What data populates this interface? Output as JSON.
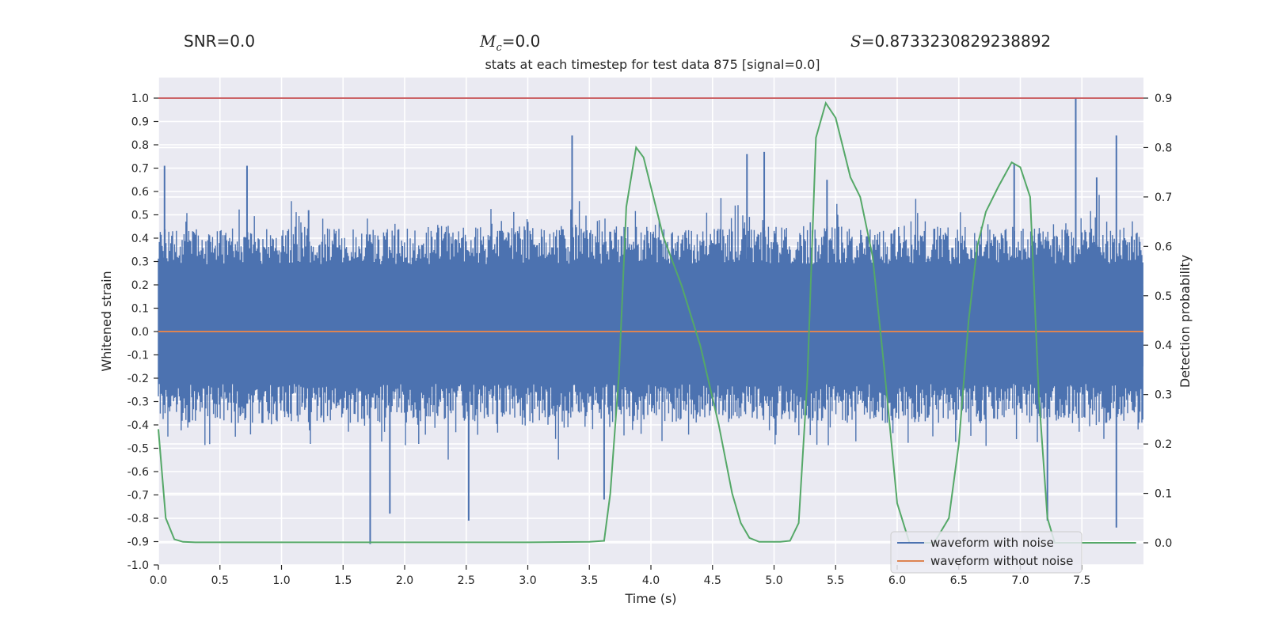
{
  "chart_data": {
    "type": "line",
    "title": "stats at each timestep for test data 875 [signal=0.0]",
    "header_stats": {
      "snr_label": "SNR=0.0",
      "mc_symbol": "M",
      "mc_subscript": "c",
      "mc_value": "=0.0",
      "s_symbol": "S",
      "s_value": "=0.8733230829238892"
    },
    "xlabel": "Time (s)",
    "ylabel_left": "Whitened strain",
    "ylabel_right": "Detection probability",
    "xlim": [
      0.0,
      8.0
    ],
    "ylim_left": [
      -1.0,
      1.1
    ],
    "ylim_right": [
      -0.04,
      0.94
    ],
    "x_ticks": [
      "0.0",
      "0.5",
      "1.0",
      "1.5",
      "2.0",
      "2.5",
      "3.0",
      "3.5",
      "4.0",
      "4.5",
      "5.0",
      "5.5",
      "6.0",
      "6.5",
      "7.0",
      "7.5"
    ],
    "y_left_ticks": [
      "1.0",
      "0.9",
      "0.8",
      "0.7",
      "0.6",
      "0.5",
      "0.4",
      "0.3",
      "0.2",
      "0.1",
      "0.0",
      "-0.1",
      "-0.2",
      "-0.3",
      "-0.4",
      "-0.5",
      "-0.6",
      "-0.7",
      "-0.8",
      "-0.9",
      "-1.0"
    ],
    "y_right_ticks": [
      "0.9",
      "0.8",
      "0.7",
      "0.6",
      "0.5",
      "0.4",
      "0.3",
      "0.2",
      "0.1",
      "0.0"
    ],
    "threshold_line": {
      "y_right": 0.9,
      "color": "#c44e52"
    },
    "series": [
      {
        "name": "waveform with noise",
        "axis": "left",
        "color": "#4c72b0",
        "description_values": {
          "band_low": -0.28,
          "band_high": 0.36,
          "min": -0.91,
          "max": 1.0
        },
        "spikes": [
          {
            "x": 0.05,
            "y": 0.71
          },
          {
            "x": 0.72,
            "y": 0.71
          },
          {
            "x": 1.22,
            "y": 0.52
          },
          {
            "x": 1.72,
            "y": -0.91
          },
          {
            "x": 1.88,
            "y": -0.78
          },
          {
            "x": 2.52,
            "y": -0.81
          },
          {
            "x": 3.36,
            "y": 0.84
          },
          {
            "x": 3.62,
            "y": -0.72
          },
          {
            "x": 4.78,
            "y": 0.76
          },
          {
            "x": 4.92,
            "y": 0.77
          },
          {
            "x": 5.43,
            "y": 0.65
          },
          {
            "x": 6.95,
            "y": 0.72
          },
          {
            "x": 7.22,
            "y": -0.81
          },
          {
            "x": 7.45,
            "y": 1.0
          },
          {
            "x": 7.78,
            "y": 0.84
          },
          {
            "x": 7.78,
            "y": -0.84
          },
          {
            "x": 7.62,
            "y": 0.66
          }
        ]
      },
      {
        "name": "waveform without noise",
        "axis": "left",
        "color": "#dd8452",
        "x": [
          0.0,
          8.0
        ],
        "values": [
          0.0,
          0.0
        ]
      },
      {
        "name": "detection probability",
        "axis": "right",
        "color": "#55a868",
        "x": [
          0.0,
          0.06,
          0.13,
          0.2,
          0.3,
          0.8,
          1.5,
          2.5,
          3.0,
          3.5,
          3.62,
          3.67,
          3.74,
          3.8,
          3.88,
          3.94,
          4.0,
          4.1,
          4.25,
          4.4,
          4.55,
          4.66,
          4.73,
          4.8,
          4.88,
          4.95,
          5.05,
          5.13,
          5.2,
          5.27,
          5.34,
          5.42,
          5.5,
          5.56,
          5.62,
          5.7,
          5.8,
          5.9,
          6.0,
          6.1,
          6.2,
          6.3,
          6.42,
          6.5,
          6.58,
          6.65,
          6.72,
          6.82,
          6.93,
          7.0,
          7.08,
          7.15,
          7.22,
          7.28,
          7.34,
          7.5,
          7.8,
          7.94
        ],
        "values": [
          0.23,
          0.05,
          0.007,
          0.002,
          0.001,
          0.001,
          0.001,
          0.001,
          0.001,
          0.002,
          0.004,
          0.1,
          0.34,
          0.68,
          0.8,
          0.78,
          0.72,
          0.62,
          0.52,
          0.4,
          0.24,
          0.1,
          0.04,
          0.01,
          0.002,
          0.002,
          0.002,
          0.004,
          0.04,
          0.33,
          0.82,
          0.89,
          0.86,
          0.8,
          0.74,
          0.7,
          0.58,
          0.34,
          0.08,
          0.0,
          0.0,
          0.0,
          0.05,
          0.2,
          0.45,
          0.6,
          0.67,
          0.72,
          0.77,
          0.76,
          0.7,
          0.3,
          0.05,
          0.0,
          0.0,
          0.0,
          0.0,
          0.0
        ]
      }
    ],
    "legend": {
      "position": "lower-right",
      "entries": [
        {
          "label": "waveform with noise",
          "color": "#4c72b0"
        },
        {
          "label": "waveform without noise",
          "color": "#dd8452"
        }
      ]
    },
    "grid": true,
    "style": {
      "plot_bg": "#eaeaf2",
      "grid_color": "#ffffff"
    }
  }
}
